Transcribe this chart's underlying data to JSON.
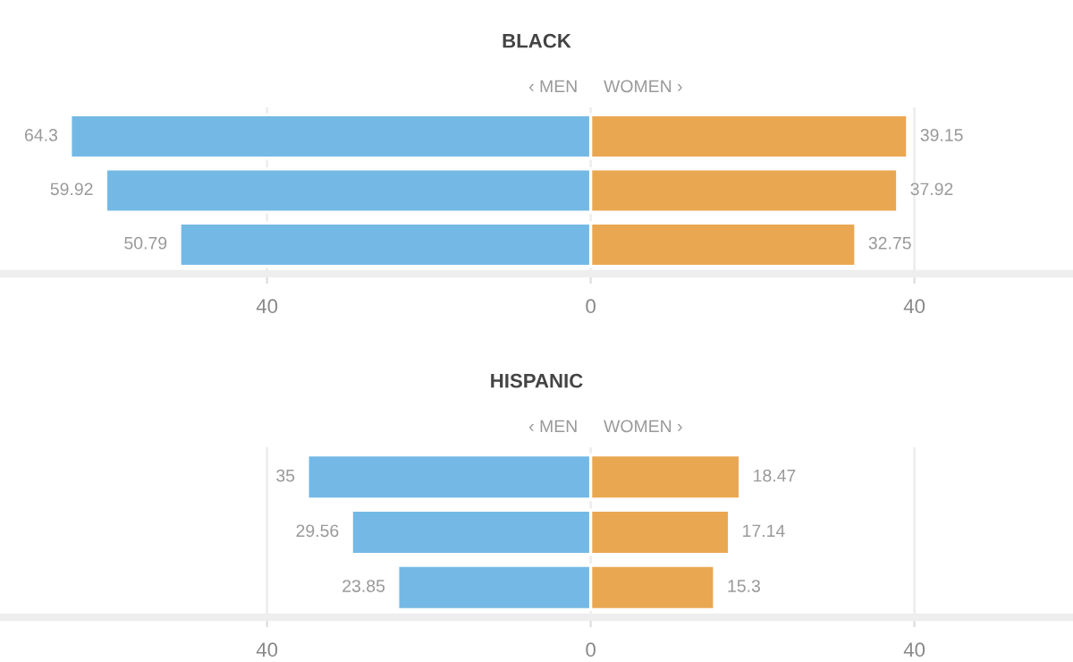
{
  "chart_data": [
    {
      "type": "bar",
      "title": "BLACK",
      "orientation": "horizontal",
      "categories": [
        null,
        null,
        null
      ],
      "legend": "top",
      "grid": "x",
      "tick_labels": "x",
      "xlim": [
        -73,
        59.6
      ],
      "xticks": [
        {
          "value": -40,
          "label": "40"
        },
        0,
        40
      ],
      "series": [
        {
          "name": "‹ MEN",
          "color": "#74b9e5",
          "values": [
            64.3,
            59.92,
            50.79
          ],
          "base": [
            -64.3,
            -59.92,
            -50.79
          ],
          "value_labels": [
            "64.3",
            "59.92",
            "50.79"
          ]
        },
        {
          "name": "WOMEN ›",
          "color": "#eaa752",
          "values": [
            39.15,
            37.92,
            32.75
          ],
          "value_labels": [
            "39.15",
            "37.92",
            "32.75"
          ]
        }
      ]
    },
    {
      "type": "bar",
      "title": "HISPANIC",
      "orientation": "horizontal",
      "categories": [
        null,
        null,
        null
      ],
      "legend": "top",
      "grid": "x",
      "tick_labels": "x",
      "xlim": [
        -73,
        59.6
      ],
      "xticks": [
        {
          "value": -40,
          "label": "40"
        },
        0,
        40
      ],
      "series": [
        {
          "name": "‹ MEN",
          "color": "#74b9e5",
          "values": [
            35,
            29.56,
            23.85
          ],
          "base": [
            -35,
            -29.56,
            -23.85
          ],
          "value_labels": [
            "35",
            "29.56",
            "23.85"
          ]
        },
        {
          "name": "WOMEN ›",
          "color": "#eaa752",
          "values": [
            18.47,
            17.14,
            15.3
          ],
          "value_labels": [
            "18.47",
            "17.14",
            "15.3"
          ]
        }
      ]
    }
  ]
}
